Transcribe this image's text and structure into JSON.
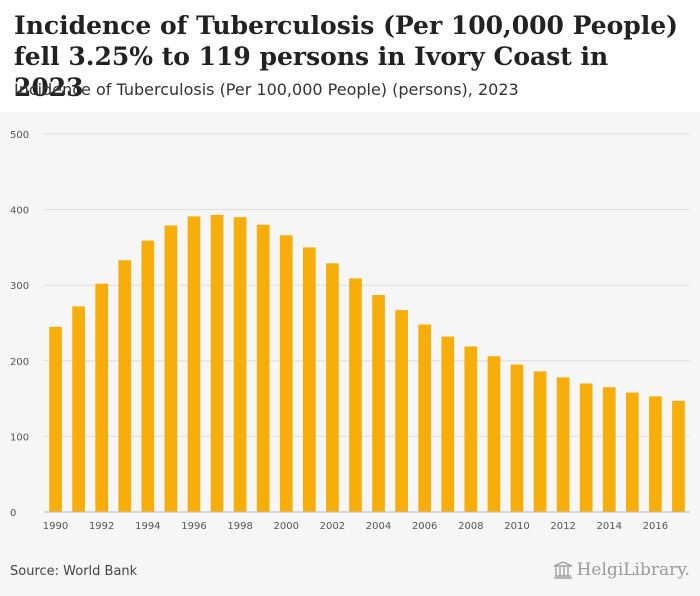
{
  "header": {
    "title": "Incidence of Tuberculosis (Per 100,000 People) fell 3.25% to 119 persons in Ivory Coast in 2023",
    "subtitle": "Incidence of Tuberculosis (Per 100,000 People) (persons), 2023"
  },
  "footer": {
    "source": "Source: World Bank",
    "logo_text": "HelgiLibrary."
  },
  "colors": {
    "bar": "#f7ae0a",
    "plot_bg": "#f6f6f6",
    "grid": "#dddddd"
  },
  "chart_data": {
    "type": "bar",
    "categories": [
      "1990",
      "1991",
      "1992",
      "1993",
      "1994",
      "1995",
      "1996",
      "1997",
      "1998",
      "1999",
      "2000",
      "2001",
      "2002",
      "2003",
      "2004",
      "2005",
      "2006",
      "2007",
      "2008",
      "2009",
      "2010",
      "2011",
      "2012",
      "2013",
      "2014",
      "2015",
      "2016",
      "2017"
    ],
    "values": [
      245,
      272,
      302,
      333,
      359,
      379,
      391,
      393,
      390,
      380,
      366,
      350,
      329,
      309,
      287,
      267,
      248,
      232,
      219,
      206,
      195,
      186,
      178,
      170,
      165,
      158,
      153,
      147
    ],
    "x_tick_labels": [
      "1990",
      "1992",
      "1994",
      "1996",
      "1998",
      "2000",
      "2002",
      "2004",
      "2006",
      "2008",
      "2010",
      "2012",
      "2014",
      "2016"
    ],
    "y_ticks": [
      0,
      100,
      200,
      300,
      400,
      500
    ],
    "ylim": [
      0,
      500
    ],
    "grid": true,
    "legend": "none"
  }
}
